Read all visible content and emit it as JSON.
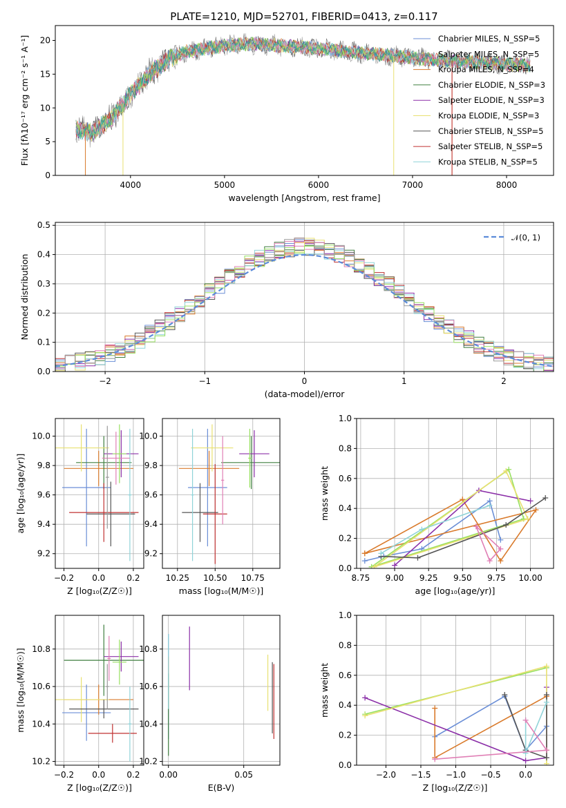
{
  "title": "PLATE=1210, MJD=52701, FIBERID=0413, z=0.117",
  "colors": [
    "#6a8ed6",
    "#d97a2b",
    "#3f7f3f",
    "#8b2fa8",
    "#e8e070",
    "#555555",
    "#c03030",
    "#8fd3d8",
    "#e07fb5",
    "#98e060",
    "#999999",
    "#2a9f9f"
  ],
  "chart_data": [
    {
      "type": "line",
      "title": "PLATE=1210, MJD=52701, FIBERID=0413, z=0.117",
      "xlabel": "wavelength [Angstrom, rest frame]",
      "ylabel": "Flux [fλ10⁻¹⁷ erg cm⁻² s⁻¹ A⁻¹]",
      "xlim": [
        3200,
        8500
      ],
      "ylim": [
        0,
        22.2
      ],
      "xticks": [
        "4000",
        "5000",
        "6000",
        "7000",
        "8000"
      ],
      "yticks": [
        "0",
        "5",
        "10",
        "15",
        "20"
      ],
      "x_range": [
        3420,
        8250
      ],
      "continuum": {
        "x": [
          3420,
          3600,
          3800,
          4000,
          4200,
          4400,
          4600,
          4800,
          5000,
          5300,
          5600,
          6000,
          6400,
          6800,
          7200,
          7600,
          8000,
          8250
        ],
        "y": [
          6.8,
          6.4,
          8.5,
          12,
          15,
          17.2,
          18.3,
          18.8,
          19.2,
          19.5,
          19.2,
          18.8,
          18.2,
          17.7,
          17.2,
          16.8,
          16.5,
          16.3
        ]
      },
      "grid": false,
      "legend_position": "top-right",
      "legend": [
        "Chabrier MILES, N_SSP=5",
        "Salpeter MILES, N_SSP=5",
        "Kroupa MILES, N_SSP=4",
        "Chabrier ELODIE, N_SSP=3",
        "Salpeter ELODIE, N_SSP=3",
        "Kroupa ELODIE, N_SSP=3",
        "Chabrier STELIB, N_SSP=5",
        "Salpeter STELIB, N_SSP=5",
        "Kroupa STELIB, N_SSP=5"
      ],
      "legend_colors": [
        "#6a8ed6",
        "#999999",
        "#d97a2b",
        "#3f7f3f",
        "#8b2fa8",
        "#e8e070",
        "#555555",
        "#c03030",
        "#8fd3d8"
      ]
    },
    {
      "type": "bar",
      "subtype": "histogram-step",
      "xlabel": "(data-model)/error",
      "ylabel": "Normed distribution",
      "xlim": [
        -2.5,
        2.5
      ],
      "ylim": [
        0,
        0.51
      ],
      "xticks": [
        "−2",
        "−1",
        "0",
        "1",
        "2"
      ],
      "yticks": [
        "0.0",
        "0.1",
        "0.2",
        "0.3",
        "0.4",
        "0.5"
      ],
      "grid": true,
      "legend": [
        "𝒩(0, 1)"
      ],
      "legend_position": "top-right"
    },
    {
      "type": "scatter",
      "subtype": "errorbars",
      "xlabel": "Z [log₁₀(Z/Z☉)]",
      "ylabel": "age  [log₁₀(age/yr)]",
      "xlim": [
        -0.25,
        0.26
      ],
      "ylim": [
        9.1,
        10.12
      ],
      "xticks": [
        "−0.2",
        "0.0",
        "0.2"
      ],
      "yticks": [
        "9.2",
        "9.4",
        "9.6",
        "9.8",
        "10.0"
      ],
      "grid": true,
      "points": [
        {
          "x": -0.07,
          "xerr": 0.14,
          "y": 9.65,
          "yerr": 0.4
        },
        {
          "x": 0.0,
          "xerr": 0.2,
          "y": 9.78,
          "yerr": 0.12
        },
        {
          "x": 0.03,
          "xerr": 0.16,
          "y": 9.82,
          "yerr": 0.18
        },
        {
          "x": 0.13,
          "xerr": 0.1,
          "y": 9.88,
          "yerr": 0.16
        },
        {
          "x": -0.1,
          "xerr": 0.16,
          "y": 9.92,
          "yerr": 0.16
        },
        {
          "x": 0.07,
          "xerr": 0.14,
          "y": 9.47,
          "yerr": 0.22
        },
        {
          "x": 0.03,
          "xerr": 0.2,
          "y": 9.48,
          "yerr": 0.2
        },
        {
          "x": 0.18,
          "xerr": 0.01,
          "y": 9.6,
          "yerr": 0.45
        },
        {
          "x": 0.1,
          "xerr": 0.08,
          "y": 9.85,
          "yerr": 0.18
        },
        {
          "x": 0.12,
          "xerr": 0.04,
          "y": 9.88,
          "yerr": 0.2
        },
        {
          "x": 0.05,
          "xerr": 0.01,
          "y": 9.72,
          "yerr": 0.35
        }
      ]
    },
    {
      "type": "scatter",
      "subtype": "errorbars",
      "xlabel": "mass [log₁₀(M/M☉)]",
      "ylabel": "",
      "xlim": [
        10.15,
        10.93
      ],
      "ylim": [
        9.1,
        10.12
      ],
      "xticks": [
        "10.25",
        "10.50",
        "10.75"
      ],
      "yticks": [
        "9.2",
        "9.4",
        "9.6",
        "9.8",
        "10.0"
      ],
      "grid": true,
      "points": [
        {
          "x": 10.45,
          "xerr": 0.13,
          "y": 9.65,
          "yerr": 0.4
        },
        {
          "x": 10.46,
          "xerr": 0.2,
          "y": 9.78,
          "yerr": 0.12
        },
        {
          "x": 10.74,
          "xerr": 0.2,
          "y": 9.82,
          "yerr": 0.18
        },
        {
          "x": 10.76,
          "xerr": 0.1,
          "y": 9.88,
          "yerr": 0.16
        },
        {
          "x": 10.48,
          "xerr": 0.14,
          "y": 9.92,
          "yerr": 0.16
        },
        {
          "x": 10.4,
          "xerr": 0.12,
          "y": 9.48,
          "yerr": 0.2
        },
        {
          "x": 10.5,
          "xerr": 0.08,
          "y": 9.47,
          "yerr": 0.34
        },
        {
          "x": 10.35,
          "xerr": 0.01,
          "y": 9.6,
          "yerr": 0.45
        },
        {
          "x": 10.55,
          "xerr": 0.01,
          "y": 9.7,
          "yerr": 0.3
        },
        {
          "x": 10.73,
          "xerr": 0.01,
          "y": 9.85,
          "yerr": 0.2
        }
      ]
    },
    {
      "type": "line",
      "xlabel": "age  [log₁₀(age/yr)]",
      "ylabel": "mass weight",
      "xlim": [
        8.72,
        10.17
      ],
      "ylim": [
        0,
        1.0
      ],
      "xticks": [
        "8.75",
        "9.00",
        "9.25",
        "9.50",
        "9.75",
        "10.00"
      ],
      "yticks": [
        "0.0",
        "0.2",
        "0.4",
        "0.6",
        "0.8",
        "1.0"
      ],
      "grid": true,
      "series": [
        {
          "x": [
            8.78,
            8.92,
            9.2,
            9.7,
            9.78
          ],
          "y": [
            0.05,
            0.08,
            0.13,
            0.45,
            0.19
          ]
        },
        {
          "x": [
            8.78,
            9.5,
            9.78,
            10.04,
            8.78
          ],
          "y": [
            0.1,
            0.46,
            0.05,
            0.39,
            0.1
          ]
        },
        {
          "x": [
            8.83,
            9.84,
            9.95,
            8.83
          ],
          "y": [
            0.01,
            0.66,
            0.33,
            0.01
          ]
        },
        {
          "x": [
            9.0,
            9.62,
            10.0
          ],
          "y": [
            0.02,
            0.52,
            0.45
          ]
        },
        {
          "x": [
            8.85,
            9.82,
            9.98,
            8.85
          ],
          "y": [
            0.01,
            0.65,
            0.33,
            0.01
          ]
        },
        {
          "x": [
            8.9,
            9.17,
            9.82,
            10.11
          ],
          "y": [
            0.08,
            0.07,
            0.29,
            0.47
          ]
        },
        {
          "x": [
            8.9,
            9.2,
            9.7
          ],
          "y": [
            0.1,
            0.26,
            0.42
          ]
        },
        {
          "x": [
            9.6,
            9.7,
            9.78,
            9.6
          ],
          "y": [
            0.28,
            0.05,
            0.13,
            0.28
          ]
        }
      ]
    },
    {
      "type": "scatter",
      "subtype": "errorbars",
      "xlabel": "Z [log₁₀(Z/Z☉)]",
      "ylabel": "mass [log₁₀(M/M☉)]",
      "xlim": [
        -0.25,
        0.26
      ],
      "ylim": [
        10.18,
        10.98
      ],
      "xticks": [
        "−0.2",
        "0.0",
        "0.2"
      ],
      "yticks": [
        "10.2",
        "10.4",
        "10.6",
        "10.8"
      ],
      "grid": true,
      "points": [
        {
          "x": -0.07,
          "xerr": 0.14,
          "y": 10.46,
          "yerr": 0.15
        },
        {
          "x": 0.0,
          "xerr": 0.2,
          "y": 10.53,
          "yerr": 0.08
        },
        {
          "x": 0.03,
          "xerr": 0.23,
          "y": 10.74,
          "yerr": 0.19
        },
        {
          "x": 0.13,
          "xerr": 0.1,
          "y": 10.76,
          "yerr": 0.08
        },
        {
          "x": -0.1,
          "xerr": 0.16,
          "y": 10.53,
          "yerr": 0.12
        },
        {
          "x": 0.03,
          "xerr": 0.2,
          "y": 10.48,
          "yerr": 0.05
        },
        {
          "x": 0.08,
          "xerr": 0.14,
          "y": 10.35,
          "yerr": 0.05
        },
        {
          "x": 0.18,
          "xerr": 0.01,
          "y": 10.4,
          "yerr": 0.2
        },
        {
          "x": 0.06,
          "xerr": 0.01,
          "y": 10.75,
          "yerr": 0.12
        },
        {
          "x": 0.12,
          "xerr": 0.04,
          "y": 10.73,
          "yerr": 0.12
        },
        {
          "x": 0.05,
          "xerr": 0.01,
          "y": 10.6,
          "yerr": 0.12
        }
      ]
    },
    {
      "type": "scatter",
      "subtype": "errorbars",
      "xlabel": "E(B-V)",
      "ylabel": "",
      "xlim": [
        -0.004,
        0.074
      ],
      "ylim": [
        10.18,
        10.98
      ],
      "xticks": [
        "0.00",
        "0.05"
      ],
      "yticks": [
        "10.2",
        "10.4",
        "10.6",
        "10.8"
      ],
      "grid": true,
      "points": [
        {
          "x": 0.0,
          "y": 10.6,
          "yerr": 0.28
        },
        {
          "x": 0.0,
          "y": 10.62,
          "yerr": 0.14
        },
        {
          "x": 0.0,
          "y": 10.45,
          "yerr": 0.22
        },
        {
          "x": 0.014,
          "y": 10.75,
          "yerr": 0.17
        },
        {
          "x": 0.066,
          "y": 10.62,
          "yerr": 0.15
        },
        {
          "x": 0.069,
          "y": 10.54,
          "yerr": 0.19
        },
        {
          "x": 0.07,
          "y": 10.52,
          "yerr": 0.2
        },
        {
          "x": 0.0,
          "y": 10.68,
          "yerr": 0.2
        }
      ]
    },
    {
      "type": "line",
      "xlabel": "Z [log₁₀(Z/Z☉)]",
      "ylabel": "mass weight",
      "xlim": [
        -2.42,
        0.4
      ],
      "ylim": [
        0,
        1.0
      ],
      "xticks": [
        "−2.0",
        "−1.5",
        "−1.0",
        "−0.5",
        "0.0"
      ],
      "yticks": [
        "0.0",
        "0.2",
        "0.4",
        "0.6",
        "0.8",
        "1.0"
      ],
      "grid": true,
      "series": [
        {
          "x": [
            -1.3,
            -0.3,
            0.0,
            0.3
          ],
          "y": [
            0.19,
            0.46,
            0.1,
            0.26
          ]
        },
        {
          "x": [
            -1.3,
            -1.3,
            0.3,
            0.3
          ],
          "y": [
            0.38,
            0.05,
            0.46,
            0.1
          ]
        },
        {
          "x": [
            -2.3,
            0.3
          ],
          "y": [
            0.34,
            0.65
          ]
        },
        {
          "x": [
            -2.3,
            0.0,
            0.3,
            0.3
          ],
          "y": [
            0.45,
            0.03,
            0.05,
            0.52
          ]
        },
        {
          "x": [
            -2.3,
            0.3,
            0.3
          ],
          "y": [
            0.33,
            0.66,
            0.01
          ]
        },
        {
          "x": [
            -0.3,
            0.0,
            0.3,
            0.3
          ],
          "y": [
            0.47,
            0.1,
            0.05,
            0.47
          ]
        },
        {
          "x": [
            0.0,
            0.0,
            0.3
          ],
          "y": [
            0.3,
            0.08,
            0.42
          ]
        },
        {
          "x": [
            -1.3,
            0.3,
            0.0
          ],
          "y": [
            0.04,
            0.1,
            0.3
          ]
        }
      ]
    }
  ]
}
